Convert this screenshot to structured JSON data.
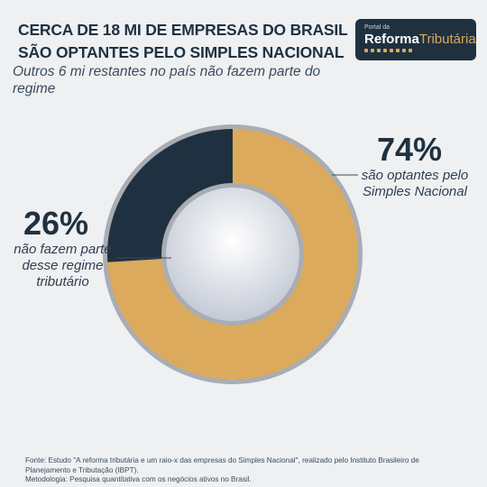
{
  "header": {
    "title_line1": "CERCA DE 18 MI DE EMPRESAS DO BRASIL",
    "title_line2": "SÃO OPTANTES PELO SIMPLES NACIONAL",
    "subtitle": "Outros 6 mi restantes no país não fazem parte do regime"
  },
  "logo": {
    "small_text": "Portal da",
    "main_text": "Reforma",
    "accent_text": "Tributária"
  },
  "colors": {
    "accent": "#dcaa5c",
    "navy": "#1f3140",
    "background": "#eef0f2"
  },
  "chart_data": {
    "type": "pie",
    "style": "donut",
    "title": "CERCA DE 18 MI DE EMPRESAS DO BRASIL SÃO OPTANTES PELO SIMPLES NACIONAL",
    "series": [
      {
        "name": "são optantes pelo Simples Nacional",
        "value": 74,
        "label": "74%",
        "color": "#dcaa5c"
      },
      {
        "name": "não fazem parte desse regime tributário",
        "value": 26,
        "label": "26%",
        "color": "#1f3140"
      }
    ]
  },
  "footer": {
    "source": "Fonte: Estudo \"A reforma tributária e um raio-x das empresas do Simples Nacional\", realizado pelo Instituto Brasileiro de Planejamento e Tributação (IBPT).",
    "methodology": "Metodologia: Pesquisa quantitativa com os negócios ativos no Brasil."
  }
}
